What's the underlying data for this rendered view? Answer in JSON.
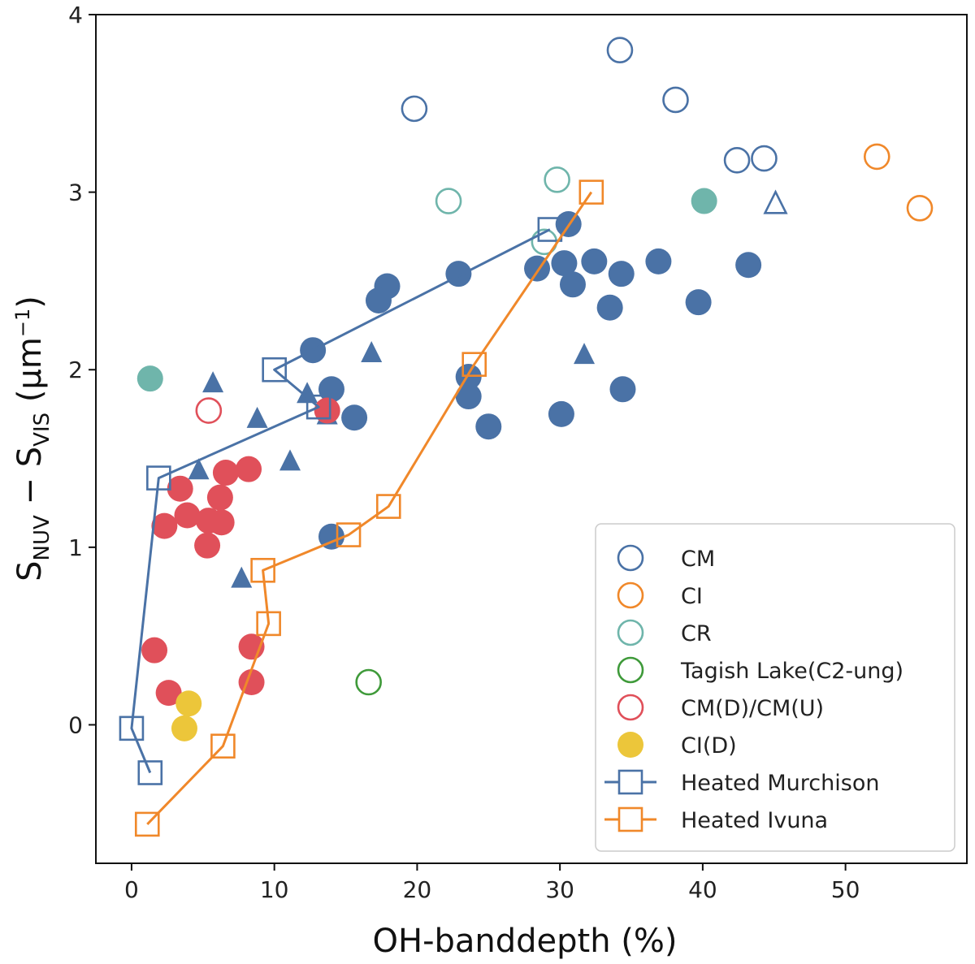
{
  "chart_data": {
    "type": "scatter",
    "xlabel": "OH-banddepth (%)",
    "ylabel": {
      "main": "S",
      "sub1": "NUV",
      "mid": " − S",
      "sub2": "VIS",
      "unit": " (μm",
      "sup": "−1",
      "close": ")"
    },
    "xlim": [
      -2.5,
      58.5
    ],
    "ylim": [
      -0.78,
      4.0
    ],
    "xticks": [
      0,
      10,
      20,
      30,
      40,
      50
    ],
    "yticks": [
      0,
      1,
      2,
      3,
      4
    ],
    "grid": false,
    "legend_position": "lower-right",
    "colors": {
      "blue": "#4a72a6",
      "orange": "#f0882a",
      "teal": "#6fb5ab",
      "green": "#3f9a3a",
      "red": "#e0505a",
      "yellow": "#ecc63a"
    },
    "legend": [
      {
        "label": "CM",
        "marker": "circle-open",
        "color": "#4a72a6"
      },
      {
        "label": "CI",
        "marker": "circle-open",
        "color": "#f0882a"
      },
      {
        "label": "CR",
        "marker": "circle-open",
        "color": "#6fb5ab"
      },
      {
        "label": "Tagish Lake(C2-ung)",
        "marker": "circle-open",
        "color": "#3f9a3a"
      },
      {
        "label": "CM(D)/CM(U)",
        "marker": "circle-open",
        "color": "#e0505a"
      },
      {
        "label": "CI(D)",
        "marker": "circle-filled",
        "color": "#ecc63a"
      },
      {
        "label": "Heated Murchison",
        "marker": "square-line",
        "color": "#4a72a6"
      },
      {
        "label": "Heated Ivuna",
        "marker": "square-line",
        "color": "#f0882a"
      }
    ],
    "series": [
      {
        "name": "CM open circles",
        "marker": "circle",
        "fill": false,
        "color": "#4a72a6",
        "points": [
          [
            34.2,
            3.8
          ],
          [
            19.8,
            3.47
          ],
          [
            38.1,
            3.52
          ],
          [
            42.4,
            3.18
          ],
          [
            44.3,
            3.19
          ]
        ]
      },
      {
        "name": "CI open circles",
        "marker": "circle",
        "fill": false,
        "color": "#f0882a",
        "points": [
          [
            52.2,
            3.2
          ],
          [
            55.2,
            2.91
          ]
        ]
      },
      {
        "name": "CR open circles",
        "marker": "circle",
        "fill": false,
        "color": "#6fb5ab",
        "points": [
          [
            22.2,
            2.95
          ],
          [
            29.8,
            3.07
          ],
          [
            28.9,
            2.72
          ]
        ]
      },
      {
        "name": "Tagish Lake",
        "marker": "circle",
        "fill": false,
        "color": "#3f9a3a",
        "points": [
          [
            16.6,
            0.24
          ]
        ]
      },
      {
        "name": "CM(D)/CM(U) open",
        "marker": "circle",
        "fill": false,
        "color": "#e0505a",
        "points": [
          [
            5.4,
            1.77
          ]
        ]
      },
      {
        "name": "CM filled circles",
        "marker": "circle",
        "fill": true,
        "color": "#4a72a6",
        "points": [
          [
            30.6,
            2.82
          ],
          [
            22.9,
            2.54
          ],
          [
            28.4,
            2.57
          ],
          [
            30.3,
            2.6
          ],
          [
            32.4,
            2.61
          ],
          [
            34.3,
            2.54
          ],
          [
            36.9,
            2.61
          ],
          [
            43.2,
            2.59
          ],
          [
            17.9,
            2.47
          ],
          [
            17.3,
            2.39
          ],
          [
            30.9,
            2.48
          ],
          [
            33.5,
            2.35
          ],
          [
            39.7,
            2.38
          ],
          [
            12.7,
            2.11
          ],
          [
            23.6,
            1.96
          ],
          [
            23.6,
            1.85
          ],
          [
            14.0,
            1.89
          ],
          [
            15.6,
            1.73
          ],
          [
            25.0,
            1.68
          ],
          [
            30.1,
            1.75
          ],
          [
            34.4,
            1.89
          ],
          [
            14.0,
            1.06
          ]
        ]
      },
      {
        "name": "CR filled circles",
        "marker": "circle",
        "fill": true,
        "color": "#6fb5ab",
        "points": [
          [
            1.3,
            1.95
          ],
          [
            40.1,
            2.95
          ]
        ]
      },
      {
        "name": "CM filled triangles",
        "marker": "triangle",
        "fill": true,
        "color": "#4a72a6",
        "points": [
          [
            5.7,
            1.92
          ],
          [
            16.8,
            2.09
          ],
          [
            31.7,
            2.08
          ],
          [
            12.3,
            1.86
          ],
          [
            13.7,
            1.74
          ],
          [
            8.8,
            1.72
          ],
          [
            11.1,
            1.48
          ],
          [
            4.7,
            1.43
          ],
          [
            7.7,
            0.82
          ]
        ]
      },
      {
        "name": "CM open triangle",
        "marker": "triangle",
        "fill": false,
        "color": "#4a72a6",
        "points": [
          [
            45.1,
            2.93
          ]
        ]
      },
      {
        "name": "CM(D)/CM(U) filled",
        "marker": "circle",
        "fill": true,
        "color": "#e0505a",
        "points": [
          [
            13.7,
            1.77
          ],
          [
            3.4,
            1.33
          ],
          [
            6.6,
            1.42
          ],
          [
            8.2,
            1.44
          ],
          [
            3.9,
            1.18
          ],
          [
            2.3,
            1.12
          ],
          [
            6.2,
            1.28
          ],
          [
            5.4,
            1.15
          ],
          [
            6.3,
            1.14
          ],
          [
            5.3,
            1.01
          ],
          [
            1.6,
            0.42
          ],
          [
            8.4,
            0.44
          ],
          [
            8.4,
            0.24
          ],
          [
            2.6,
            0.18
          ]
        ]
      },
      {
        "name": "CI(D)",
        "marker": "circle",
        "fill": true,
        "color": "#ecc63a",
        "points": [
          [
            4.0,
            0.12
          ],
          [
            3.7,
            -0.02
          ]
        ]
      },
      {
        "name": "Heated Murchison",
        "marker": "square",
        "fill": false,
        "line": true,
        "color": "#4a72a6",
        "points": [
          [
            1.3,
            -0.27
          ],
          [
            0.0,
            -0.02
          ],
          [
            1.9,
            1.39
          ],
          [
            13.1,
            1.79
          ],
          [
            10.0,
            2.0
          ],
          [
            29.3,
            2.79
          ]
        ]
      },
      {
        "name": "Heated Ivuna",
        "marker": "square",
        "fill": false,
        "line": true,
        "color": "#f0882a",
        "points": [
          [
            1.1,
            -0.56
          ],
          [
            6.4,
            -0.12
          ],
          [
            9.6,
            0.57
          ],
          [
            9.2,
            0.87
          ],
          [
            15.2,
            1.07
          ],
          [
            18.0,
            1.23
          ],
          [
            24.0,
            2.03
          ],
          [
            32.2,
            3.0
          ]
        ]
      }
    ]
  }
}
